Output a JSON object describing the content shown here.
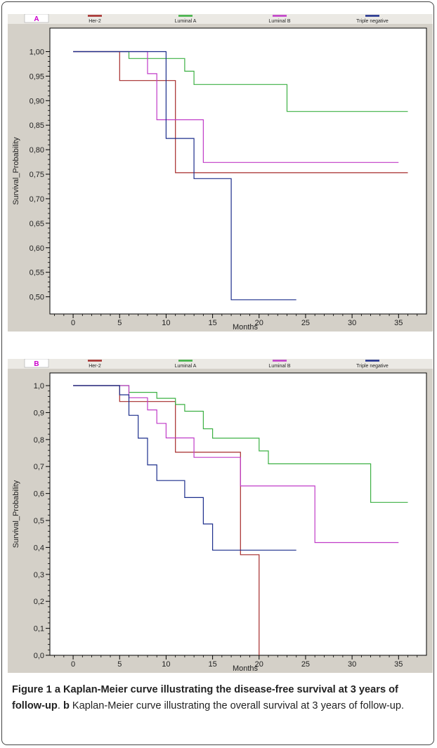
{
  "chart_data": [
    {
      "type": "line",
      "panel_label": "A",
      "xlabel": "Months",
      "ylabel": "Survival_Probability",
      "xlim": [
        -2.5,
        38
      ],
      "ylim": [
        0.465,
        1.048
      ],
      "x_ticks": [
        0,
        5,
        10,
        15,
        20,
        25,
        30,
        35
      ],
      "y_ticks": [
        0.5,
        0.55,
        0.6,
        0.65,
        0.7,
        0.75,
        0.8,
        0.85,
        0.9,
        0.95,
        1.0
      ],
      "y_tick_labels": [
        "0,50",
        "0,55",
        "0,60",
        "0,65",
        "0,70",
        "0,75",
        "0,80",
        "0,85",
        "0,90",
        "0,95",
        "1,00"
      ],
      "grid": false,
      "legend_position": "top",
      "series": [
        {
          "name": "Her-2",
          "color": "#a52a2a",
          "steps": [
            [
              0,
              1.0
            ],
            [
              5,
              0.941
            ],
            [
              11,
              0.753
            ],
            [
              36,
              0.753
            ]
          ]
        },
        {
          "name": "Luminal A",
          "color": "#3cb043",
          "steps": [
            [
              0,
              1.0
            ],
            [
              6,
              0.986
            ],
            [
              12,
              0.96
            ],
            [
              13,
              0.933
            ],
            [
              23,
              0.878
            ],
            [
              36,
              0.878
            ]
          ]
        },
        {
          "name": "Luminal B",
          "color": "#c03bc8",
          "steps": [
            [
              0,
              1.0
            ],
            [
              8,
              0.955
            ],
            [
              9,
              0.861
            ],
            [
              14,
              0.774
            ],
            [
              35,
              0.774
            ]
          ]
        },
        {
          "name": "Triple negative",
          "color": "#1c2e8c",
          "steps": [
            [
              0,
              1.0
            ],
            [
              10,
              0.823
            ],
            [
              13,
              0.741
            ],
            [
              17,
              0.494
            ],
            [
              24,
              0.494
            ]
          ]
        }
      ]
    },
    {
      "type": "line",
      "panel_label": "B",
      "xlabel": "Months",
      "ylabel": "Survival_Probability",
      "xlim": [
        -2.5,
        38
      ],
      "ylim": [
        0,
        1.047
      ],
      "x_ticks": [
        0,
        5,
        10,
        15,
        20,
        25,
        30,
        35
      ],
      "y_ticks": [
        0,
        0.1,
        0.2,
        0.3,
        0.4,
        0.5,
        0.6,
        0.7,
        0.8,
        0.9,
        1.0
      ],
      "y_tick_labels": [
        "0,0",
        "0,1",
        "0,2",
        "0,3",
        "0,4",
        "0,5",
        "0,6",
        "0,7",
        "0,8",
        "0,9",
        "1,0"
      ],
      "grid": false,
      "legend_position": "top",
      "series": [
        {
          "name": "Her-2",
          "color": "#a52a2a",
          "steps": [
            [
              0,
              1.0
            ],
            [
              5,
              0.941
            ],
            [
              11,
              0.753
            ],
            [
              18,
              0.373
            ],
            [
              20,
              0.0
            ]
          ]
        },
        {
          "name": "Luminal A",
          "color": "#3cb043",
          "steps": [
            [
              0,
              1.0
            ],
            [
              6,
              0.975
            ],
            [
              9,
              0.953
            ],
            [
              11,
              0.93
            ],
            [
              12,
              0.905
            ],
            [
              14,
              0.84
            ],
            [
              15,
              0.805
            ],
            [
              20,
              0.758
            ],
            [
              21,
              0.71
            ],
            [
              32,
              0.567
            ],
            [
              36,
              0.567
            ]
          ]
        },
        {
          "name": "Luminal B",
          "color": "#c03bc8",
          "steps": [
            [
              0,
              1.0
            ],
            [
              6,
              0.955
            ],
            [
              8,
              0.91
            ],
            [
              9,
              0.86
            ],
            [
              10,
              0.806
            ],
            [
              13,
              0.734
            ],
            [
              18,
              0.628
            ],
            [
              26,
              0.418
            ],
            [
              35,
              0.418
            ]
          ]
        },
        {
          "name": "Triple negative",
          "color": "#1c2e8c",
          "steps": [
            [
              0,
              1.0
            ],
            [
              5,
              0.966
            ],
            [
              6,
              0.89
            ],
            [
              7,
              0.805
            ],
            [
              8,
              0.706
            ],
            [
              9,
              0.648
            ],
            [
              12,
              0.585
            ],
            [
              14,
              0.487
            ],
            [
              15,
              0.39
            ],
            [
              24,
              0.39
            ]
          ]
        }
      ]
    }
  ],
  "caption": {
    "a_bold": "Figure 1 a Kaplan-Meier curve illustrating the disease-free survival at 3 years of follow-up",
    "a_sep": ". ",
    "b_bold": "b",
    "b_text": " Kaplan-Meier curve illustrating the overall survival at 3 years of follow-up."
  }
}
